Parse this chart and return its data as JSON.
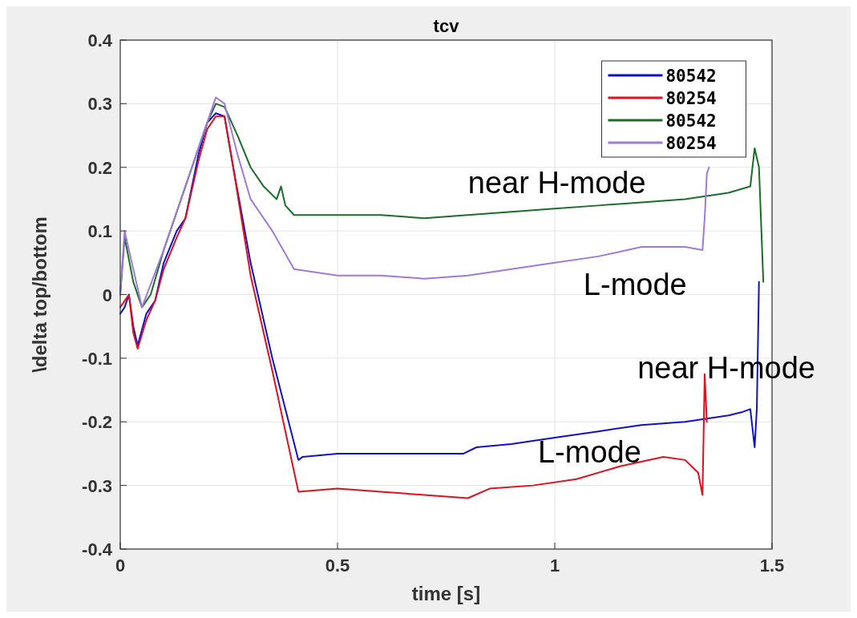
{
  "chart_data": {
    "type": "line",
    "title": "tcv",
    "xlabel": "time [s]",
    "ylabel": "\\delta top/bottom",
    "xlim": [
      0,
      1.5
    ],
    "xticks": [
      0,
      0.5,
      1,
      1.5
    ],
    "ylim": [
      -0.4,
      0.4
    ],
    "yticks": [
      -0.4,
      -0.3,
      -0.2,
      -0.1,
      0,
      0.1,
      0.2,
      0.3,
      0.4
    ],
    "grid": true,
    "legend": "top right",
    "line_style": "solid",
    "marker": "none",
    "series": [
      {
        "name": "80542",
        "color": "#1010c8",
        "x": [
          0,
          0.01,
          0.02,
          0.03,
          0.04,
          0.06,
          0.08,
          0.1,
          0.13,
          0.15,
          0.18,
          0.2,
          0.22,
          0.24,
          0.26,
          0.3,
          0.35,
          0.41,
          0.42,
          0.5,
          0.6,
          0.7,
          0.79,
          0.82,
          0.9,
          1.0,
          1.1,
          1.2,
          1.3,
          1.35,
          1.4,
          1.43,
          1.45,
          1.46,
          1.465,
          1.47
        ],
        "values": [
          -0.03,
          -0.02,
          0,
          -0.05,
          -0.08,
          -0.03,
          -0.01,
          0.05,
          0.1,
          0.12,
          0.22,
          0.27,
          0.285,
          0.28,
          0.2,
          0.05,
          -0.1,
          -0.26,
          -0.255,
          -0.25,
          -0.25,
          -0.25,
          -0.25,
          -0.24,
          -0.235,
          -0.225,
          -0.215,
          -0.205,
          -0.2,
          -0.195,
          -0.19,
          -0.185,
          -0.18,
          -0.24,
          -0.18,
          0.02
        ]
      },
      {
        "name": "80254",
        "color": "#e01020",
        "x": [
          0,
          0.01,
          0.02,
          0.03,
          0.04,
          0.06,
          0.08,
          0.1,
          0.13,
          0.15,
          0.18,
          0.2,
          0.22,
          0.24,
          0.26,
          0.3,
          0.35,
          0.41,
          0.5,
          0.6,
          0.7,
          0.8,
          0.85,
          0.95,
          1.05,
          1.15,
          1.25,
          1.3,
          1.33,
          1.34,
          1.345,
          1.35
        ],
        "values": [
          -0.02,
          -0.01,
          0,
          -0.06,
          -0.085,
          -0.04,
          -0.01,
          0.04,
          0.09,
          0.12,
          0.21,
          0.26,
          0.28,
          0.28,
          0.2,
          0.03,
          -0.12,
          -0.31,
          -0.305,
          -0.31,
          -0.315,
          -0.32,
          -0.305,
          -0.3,
          -0.29,
          -0.27,
          -0.255,
          -0.26,
          -0.28,
          -0.315,
          -0.125,
          -0.2
        ]
      },
      {
        "name": "80542",
        "color": "#1a6e2a",
        "x": [
          0,
          0.01,
          0.03,
          0.05,
          0.07,
          0.1,
          0.15,
          0.2,
          0.22,
          0.24,
          0.27,
          0.3,
          0.33,
          0.36,
          0.37,
          0.38,
          0.4,
          0.5,
          0.6,
          0.7,
          0.8,
          0.9,
          1.0,
          1.1,
          1.2,
          1.3,
          1.4,
          1.45,
          1.46,
          1.47,
          1.48
        ],
        "values": [
          0,
          0.09,
          0.02,
          -0.02,
          0,
          0.07,
          0.17,
          0.27,
          0.3,
          0.295,
          0.25,
          0.2,
          0.17,
          0.15,
          0.17,
          0.14,
          0.125,
          0.125,
          0.125,
          0.12,
          0.125,
          0.13,
          0.135,
          0.14,
          0.145,
          0.15,
          0.16,
          0.17,
          0.23,
          0.2,
          0.02
        ]
      },
      {
        "name": "80254",
        "color": "#a07ad8",
        "x": [
          0,
          0.01,
          0.05,
          0.1,
          0.2,
          0.22,
          0.24,
          0.27,
          0.3,
          0.35,
          0.4,
          0.5,
          0.6,
          0.7,
          0.8,
          0.9,
          1.0,
          1.1,
          1.2,
          1.3,
          1.34,
          1.345,
          1.35,
          1.355
        ],
        "values": [
          0,
          0.1,
          -0.02,
          0.07,
          0.27,
          0.31,
          0.3,
          0.22,
          0.15,
          0.1,
          0.04,
          0.03,
          0.03,
          0.025,
          0.03,
          0.04,
          0.05,
          0.06,
          0.075,
          0.075,
          0.07,
          0.12,
          0.19,
          0.2
        ]
      }
    ],
    "annotations": [
      "near H-mode",
      "L-mode",
      "near H-mode",
      "L-mode"
    ]
  }
}
